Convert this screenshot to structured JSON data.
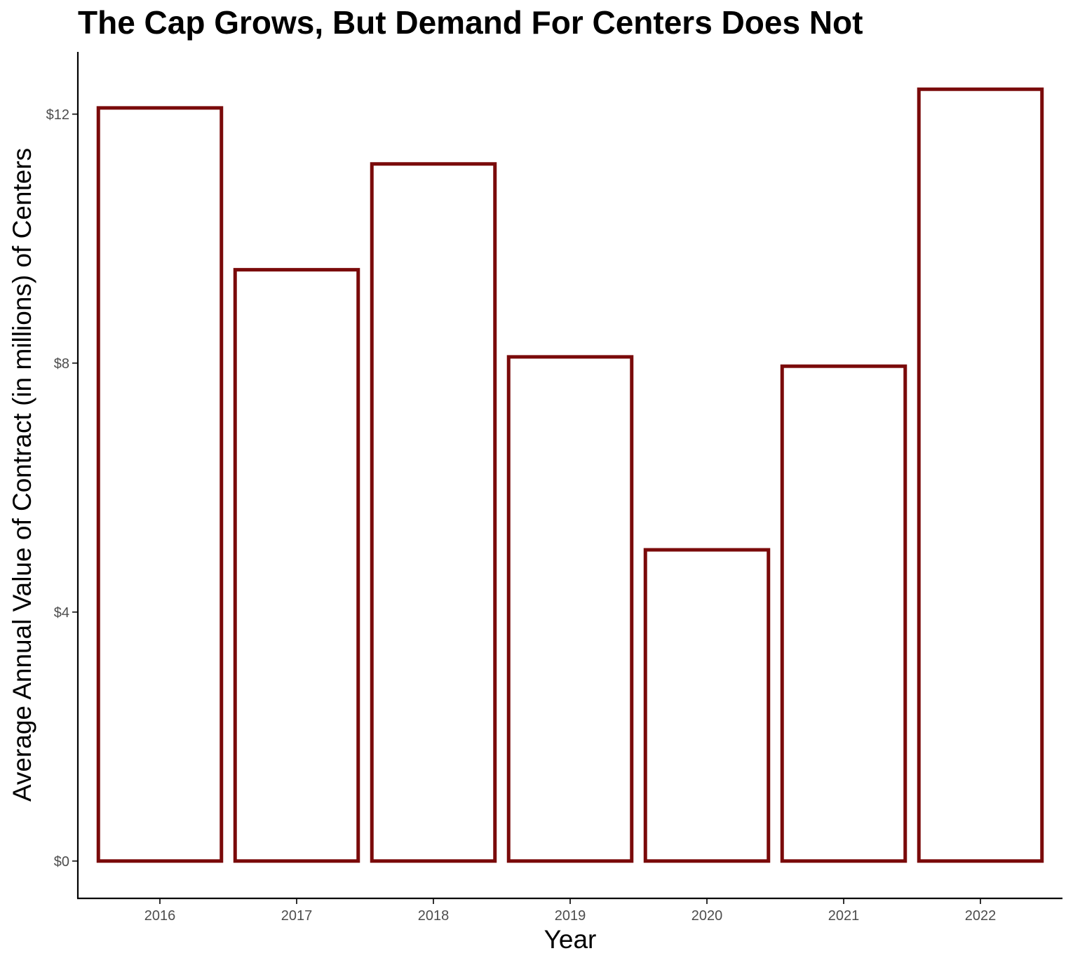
{
  "chart_data": {
    "type": "bar",
    "title": "The Cap Grows, But Demand For Centers Does Not",
    "xlabel": "Year",
    "ylabel": "Average Annual Value of Contract (in millions) of Centers",
    "categories": [
      "2016",
      "2017",
      "2018",
      "2019",
      "2020",
      "2021",
      "2022"
    ],
    "values": [
      12.1,
      9.5,
      11.2,
      8.1,
      5.0,
      7.95,
      12.4
    ],
    "ylim": [
      -0.6,
      13.0
    ],
    "y_ticks": [
      0,
      4,
      8,
      12
    ],
    "y_tick_labels": [
      "$0",
      "$4",
      "$8",
      "$12"
    ],
    "bar_outline_color": "#7a0a0a",
    "bar_fill_color": "#ffffff",
    "grid": false,
    "legend": "none"
  }
}
